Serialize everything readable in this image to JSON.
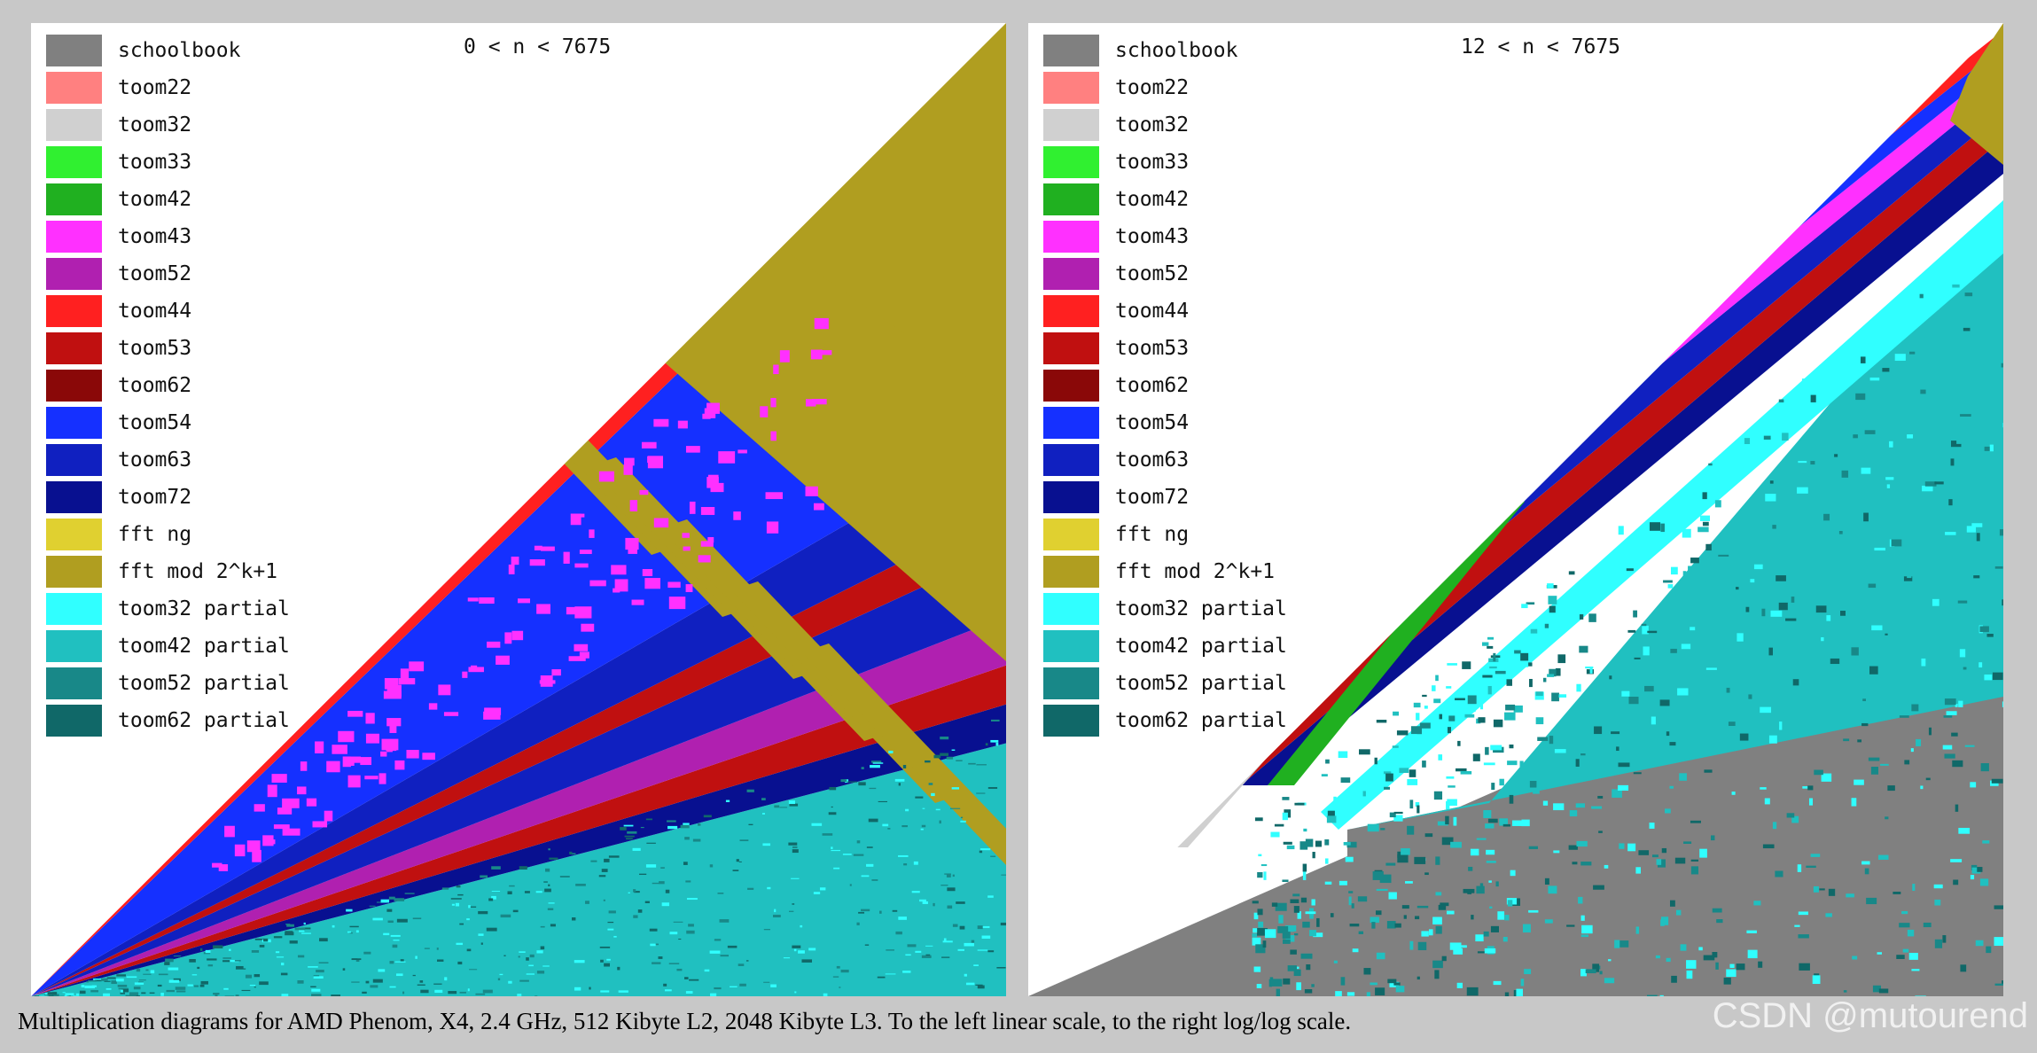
{
  "caption": "Multiplication diagrams for AMD Phenom, X4, 2.4 GHz, 512 Kibyte L2, 2048 Kibyte L3. To the left linear scale, to the right log/log scale.",
  "watermark": "CSDN @mutourend",
  "legend": [
    {
      "label": "schoolbook",
      "color": "#808080"
    },
    {
      "label": "toom22",
      "color": "#ff8080"
    },
    {
      "label": "toom32",
      "color": "#d0d0d0"
    },
    {
      "label": "toom33",
      "color": "#30f030"
    },
    {
      "label": "toom42",
      "color": "#20b020"
    },
    {
      "label": "toom43",
      "color": "#ff30ff"
    },
    {
      "label": "toom52",
      "color": "#b020b0"
    },
    {
      "label": "toom44",
      "color": "#ff2020"
    },
    {
      "label": "toom53",
      "color": "#c01010"
    },
    {
      "label": "toom62",
      "color": "#8a0808"
    },
    {
      "label": "toom54",
      "color": "#1530ff"
    },
    {
      "label": "toom63",
      "color": "#1020c0"
    },
    {
      "label": "toom72",
      "color": "#081090"
    },
    {
      "label": "fft ng",
      "color": "#e0d030"
    },
    {
      "label": "fft mod 2^k+1",
      "color": "#b09e20"
    },
    {
      "label": "toom32 partial",
      "color": "#30ffff"
    },
    {
      "label": "toom42 partial",
      "color": "#20c0c0"
    },
    {
      "label": "toom52 partial",
      "color": "#188888"
    },
    {
      "label": "toom62 partial",
      "color": "#106868"
    }
  ],
  "chart_data": [
    {
      "type": "heatmap",
      "title": "0 < n < 7675",
      "scale": "linear",
      "regions": [
        "toom44",
        "toom54",
        "toom63",
        "toom43",
        "toom53",
        "toom52",
        "toom72",
        "fft mod 2^k+1",
        "toom32 partial",
        "toom42 partial",
        "toom52 partial"
      ]
    },
    {
      "type": "heatmap",
      "title": "12 < n < 7675",
      "scale": "log/log",
      "regions": [
        "schoolbook",
        "toom22",
        "toom32",
        "toom33",
        "toom42",
        "toom43",
        "toom44",
        "toom53",
        "toom54",
        "toom63",
        "toom72",
        "fft mod 2^k+1",
        "toom32 partial",
        "toom42 partial",
        "toom52 partial"
      ]
    }
  ]
}
